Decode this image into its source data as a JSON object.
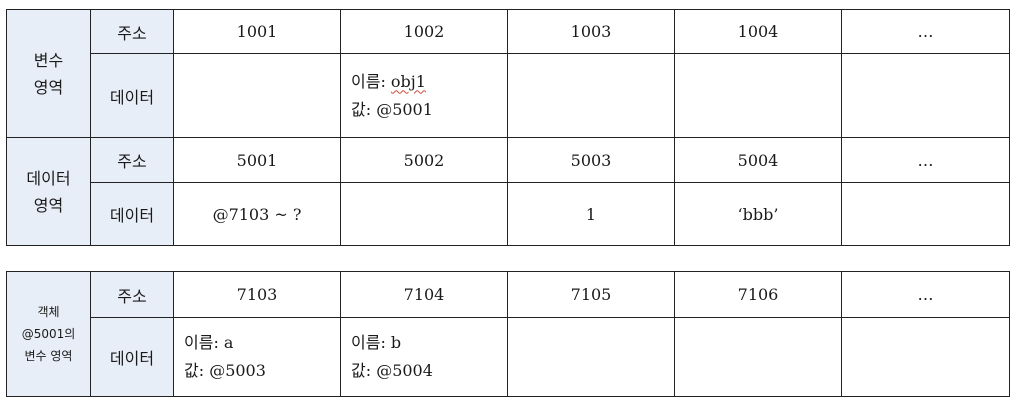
{
  "table1": {
    "var_section": [
      "변수",
      "영역"
    ],
    "data_section": [
      "데이터",
      "영역"
    ],
    "addr_label": "주소",
    "data_label": "데이터",
    "var_addresses": [
      "1001",
      "1002",
      "1003",
      "1004",
      "…"
    ],
    "var_cell_1002": {
      "name_prefix": "이름: ",
      "name_value": "obj1",
      "value_line": "값: @5001"
    },
    "data_addresses": [
      "5001",
      "5002",
      "5003",
      "5004",
      "…"
    ],
    "data_cells": [
      "@7103 ~ ?",
      "",
      "1",
      "‘bbb’",
      ""
    ]
  },
  "table2": {
    "section": [
      "객체",
      "@5001의",
      "변수 영역"
    ],
    "addr_label": "주소",
    "data_label": "데이터",
    "addresses": [
      "7103",
      "7104",
      "7105",
      "7106",
      "…"
    ],
    "cell_7103": {
      "name_line": "이름: a",
      "value_line": "값: @5003"
    },
    "cell_7104": {
      "name_line": "이름: b",
      "value_line": "값: @5004"
    }
  },
  "colors": {
    "header_bg": "#e8eef8",
    "border": "#222222",
    "spell_underline": "#d04a3a"
  }
}
